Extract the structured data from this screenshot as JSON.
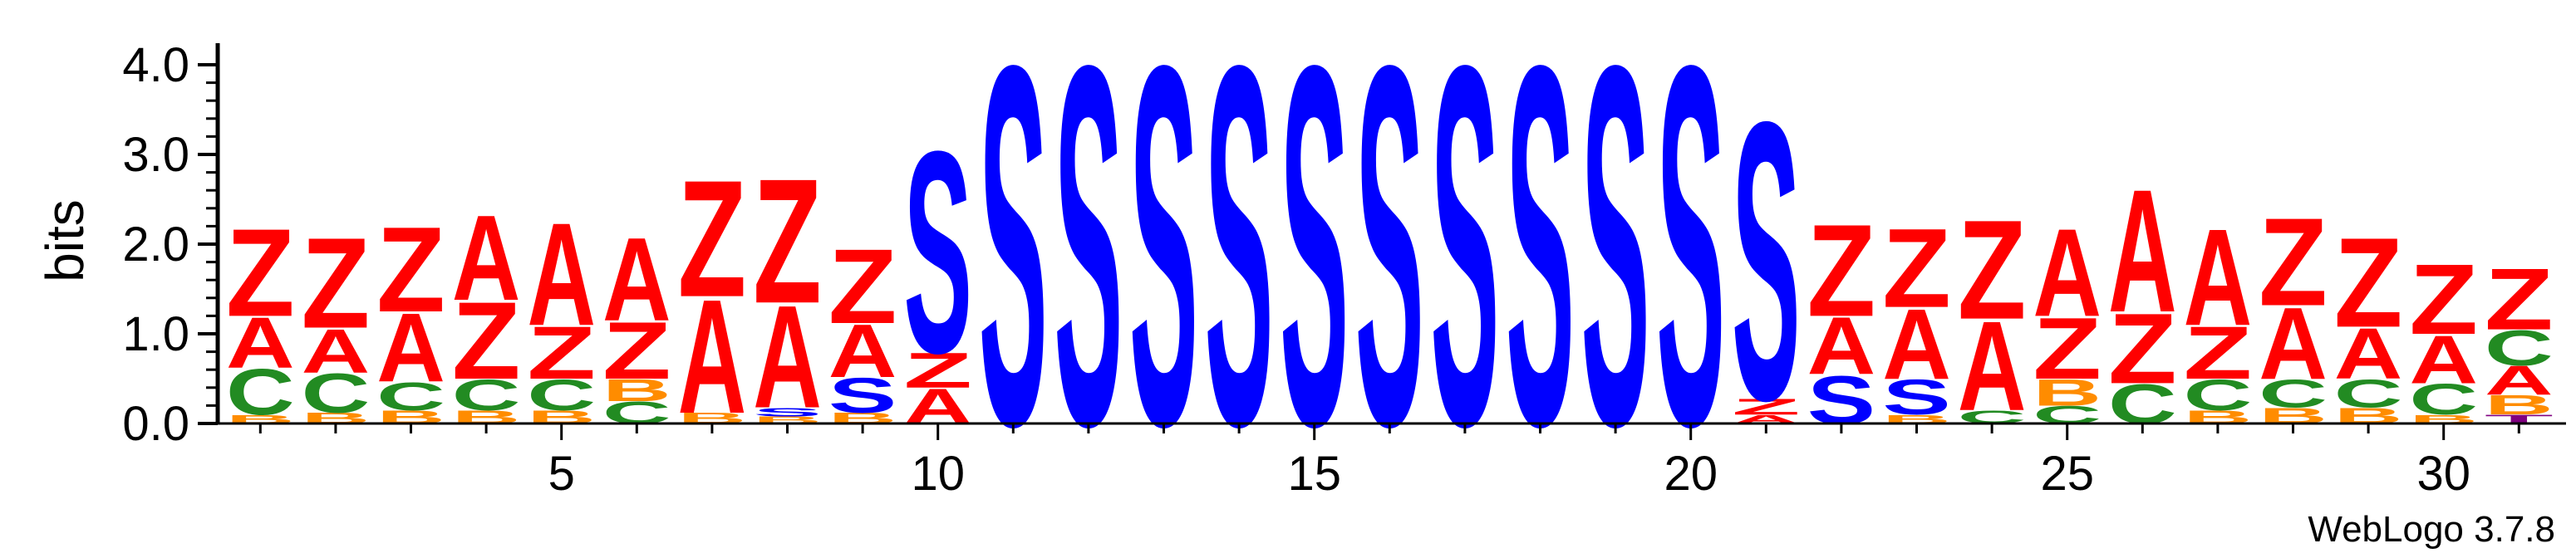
{
  "colors": {
    "Z": "#ff0000",
    "A": "#ff0000",
    "C": "#228b22",
    "B": "#ff8c00",
    "S": "#0000ff",
    "T": "#800080",
    "axis": "#000000"
  },
  "chart_data": {
    "type": "sequence-logo",
    "title": "",
    "xlabel": "",
    "ylabel": "bits",
    "ylim": [
      0,
      4.0
    ],
    "yticks": [
      "0.0",
      "1.0",
      "2.0",
      "3.0",
      "4.0"
    ],
    "xticks": [
      5,
      10,
      15,
      20,
      25,
      30
    ],
    "footer": "WebLogo 3.7.8",
    "positions": [
      {
        "x": 1,
        "stack": [
          {
            "l": "B",
            "h": 0.1
          },
          {
            "l": "C",
            "h": 0.52
          },
          {
            "l": "A",
            "h": 0.58
          },
          {
            "l": "Z",
            "h": 1.0
          }
        ]
      },
      {
        "x": 2,
        "stack": [
          {
            "l": "B",
            "h": 0.12
          },
          {
            "l": "C",
            "h": 0.45
          },
          {
            "l": "A",
            "h": 0.5
          },
          {
            "l": "Z",
            "h": 1.03
          }
        ]
      },
      {
        "x": 3,
        "stack": [
          {
            "l": "B",
            "h": 0.15
          },
          {
            "l": "C",
            "h": 0.32
          },
          {
            "l": "A",
            "h": 0.78
          },
          {
            "l": "Z",
            "h": 0.97
          }
        ]
      },
      {
        "x": 4,
        "stack": [
          {
            "l": "B",
            "h": 0.15
          },
          {
            "l": "C",
            "h": 0.35
          },
          {
            "l": "Z",
            "h": 0.88
          },
          {
            "l": "A",
            "h": 0.97
          }
        ]
      },
      {
        "x": 5,
        "stack": [
          {
            "l": "B",
            "h": 0.15
          },
          {
            "l": "C",
            "h": 0.35
          },
          {
            "l": "Z",
            "h": 0.6
          },
          {
            "l": "A",
            "h": 1.17
          }
        ]
      },
      {
        "x": 6,
        "stack": [
          {
            "l": "C",
            "h": 0.25
          },
          {
            "l": "B",
            "h": 0.25
          },
          {
            "l": "Z",
            "h": 0.65
          },
          {
            "l": "A",
            "h": 0.95
          }
        ]
      },
      {
        "x": 7,
        "stack": [
          {
            "l": "B",
            "h": 0.12
          },
          {
            "l": "A",
            "h": 1.3
          },
          {
            "l": "Z",
            "h": 1.33
          }
        ]
      },
      {
        "x": 8,
        "stack": [
          {
            "l": "B",
            "h": 0.08
          },
          {
            "l": "S",
            "h": 0.1
          },
          {
            "l": "A",
            "h": 1.17
          },
          {
            "l": "Z",
            "h": 1.42
          }
        ]
      },
      {
        "x": 9,
        "stack": [
          {
            "l": "B",
            "h": 0.12
          },
          {
            "l": "S",
            "h": 0.4
          },
          {
            "l": "A",
            "h": 0.6
          },
          {
            "l": "Z",
            "h": 0.85
          }
        ]
      },
      {
        "x": 10,
        "stack": [
          {
            "l": "A",
            "h": 0.4
          },
          {
            "l": "Z",
            "h": 0.4
          },
          {
            "l": "S",
            "h": 2.3
          }
        ]
      },
      {
        "x": 11,
        "stack": [
          {
            "l": "S",
            "h": 4.1
          }
        ]
      },
      {
        "x": 12,
        "stack": [
          {
            "l": "S",
            "h": 4.1
          }
        ]
      },
      {
        "x": 13,
        "stack": [
          {
            "l": "S",
            "h": 4.1
          }
        ]
      },
      {
        "x": 14,
        "stack": [
          {
            "l": "S",
            "h": 4.1
          }
        ]
      },
      {
        "x": 15,
        "stack": [
          {
            "l": "S",
            "h": 4.1
          }
        ]
      },
      {
        "x": 16,
        "stack": [
          {
            "l": "S",
            "h": 4.1
          }
        ]
      },
      {
        "x": 17,
        "stack": [
          {
            "l": "S",
            "h": 4.1
          }
        ]
      },
      {
        "x": 18,
        "stack": [
          {
            "l": "S",
            "h": 4.1
          }
        ]
      },
      {
        "x": 19,
        "stack": [
          {
            "l": "S",
            "h": 4.1
          }
        ]
      },
      {
        "x": 20,
        "stack": [
          {
            "l": "S",
            "h": 4.1
          }
        ]
      },
      {
        "x": 21,
        "stack": [
          {
            "l": "A",
            "h": 0.1
          },
          {
            "l": "Z",
            "h": 0.18
          },
          {
            "l": "S",
            "h": 3.17
          }
        ]
      },
      {
        "x": 22,
        "stack": [
          {
            "l": "S",
            "h": 0.55
          },
          {
            "l": "A",
            "h": 0.65
          },
          {
            "l": "Z",
            "h": 1.05
          }
        ]
      },
      {
        "x": 23,
        "stack": [
          {
            "l": "B",
            "h": 0.1
          },
          {
            "l": "S",
            "h": 0.4
          },
          {
            "l": "A",
            "h": 0.8
          },
          {
            "l": "Z",
            "h": 0.9
          }
        ]
      },
      {
        "x": 24,
        "stack": [
          {
            "l": "C",
            "h": 0.15
          },
          {
            "l": "A",
            "h": 1.02
          },
          {
            "l": "Z",
            "h": 1.13
          }
        ]
      },
      {
        "x": 25,
        "stack": [
          {
            "l": "C",
            "h": 0.2
          },
          {
            "l": "B",
            "h": 0.3
          },
          {
            "l": "Z",
            "h": 0.7
          },
          {
            "l": "A",
            "h": 1.0
          }
        ]
      },
      {
        "x": 26,
        "stack": [
          {
            "l": "C",
            "h": 0.45
          },
          {
            "l": "Z",
            "h": 0.8
          },
          {
            "l": "A",
            "h": 1.4
          }
        ]
      },
      {
        "x": 27,
        "stack": [
          {
            "l": "B",
            "h": 0.15
          },
          {
            "l": "C",
            "h": 0.35
          },
          {
            "l": "Z",
            "h": 0.6
          },
          {
            "l": "A",
            "h": 1.1
          }
        ]
      },
      {
        "x": 28,
        "stack": [
          {
            "l": "B",
            "h": 0.18
          },
          {
            "l": "C",
            "h": 0.32
          },
          {
            "l": "A",
            "h": 0.82
          },
          {
            "l": "Z",
            "h": 1.0
          }
        ]
      },
      {
        "x": 29,
        "stack": [
          {
            "l": "B",
            "h": 0.18
          },
          {
            "l": "C",
            "h": 0.32
          },
          {
            "l": "A",
            "h": 0.58
          },
          {
            "l": "Z",
            "h": 1.02
          }
        ]
      },
      {
        "x": 30,
        "stack": [
          {
            "l": "B",
            "h": 0.1
          },
          {
            "l": "C",
            "h": 0.35
          },
          {
            "l": "A",
            "h": 0.55
          },
          {
            "l": "Z",
            "h": 0.8
          }
        ]
      },
      {
        "x": 31,
        "stack": [
          {
            "l": "T",
            "h": 0.1
          },
          {
            "l": "B",
            "h": 0.22
          },
          {
            "l": "A",
            "h": 0.33
          },
          {
            "l": "C",
            "h": 0.4
          },
          {
            "l": "Z",
            "h": 0.7
          }
        ]
      }
    ]
  }
}
